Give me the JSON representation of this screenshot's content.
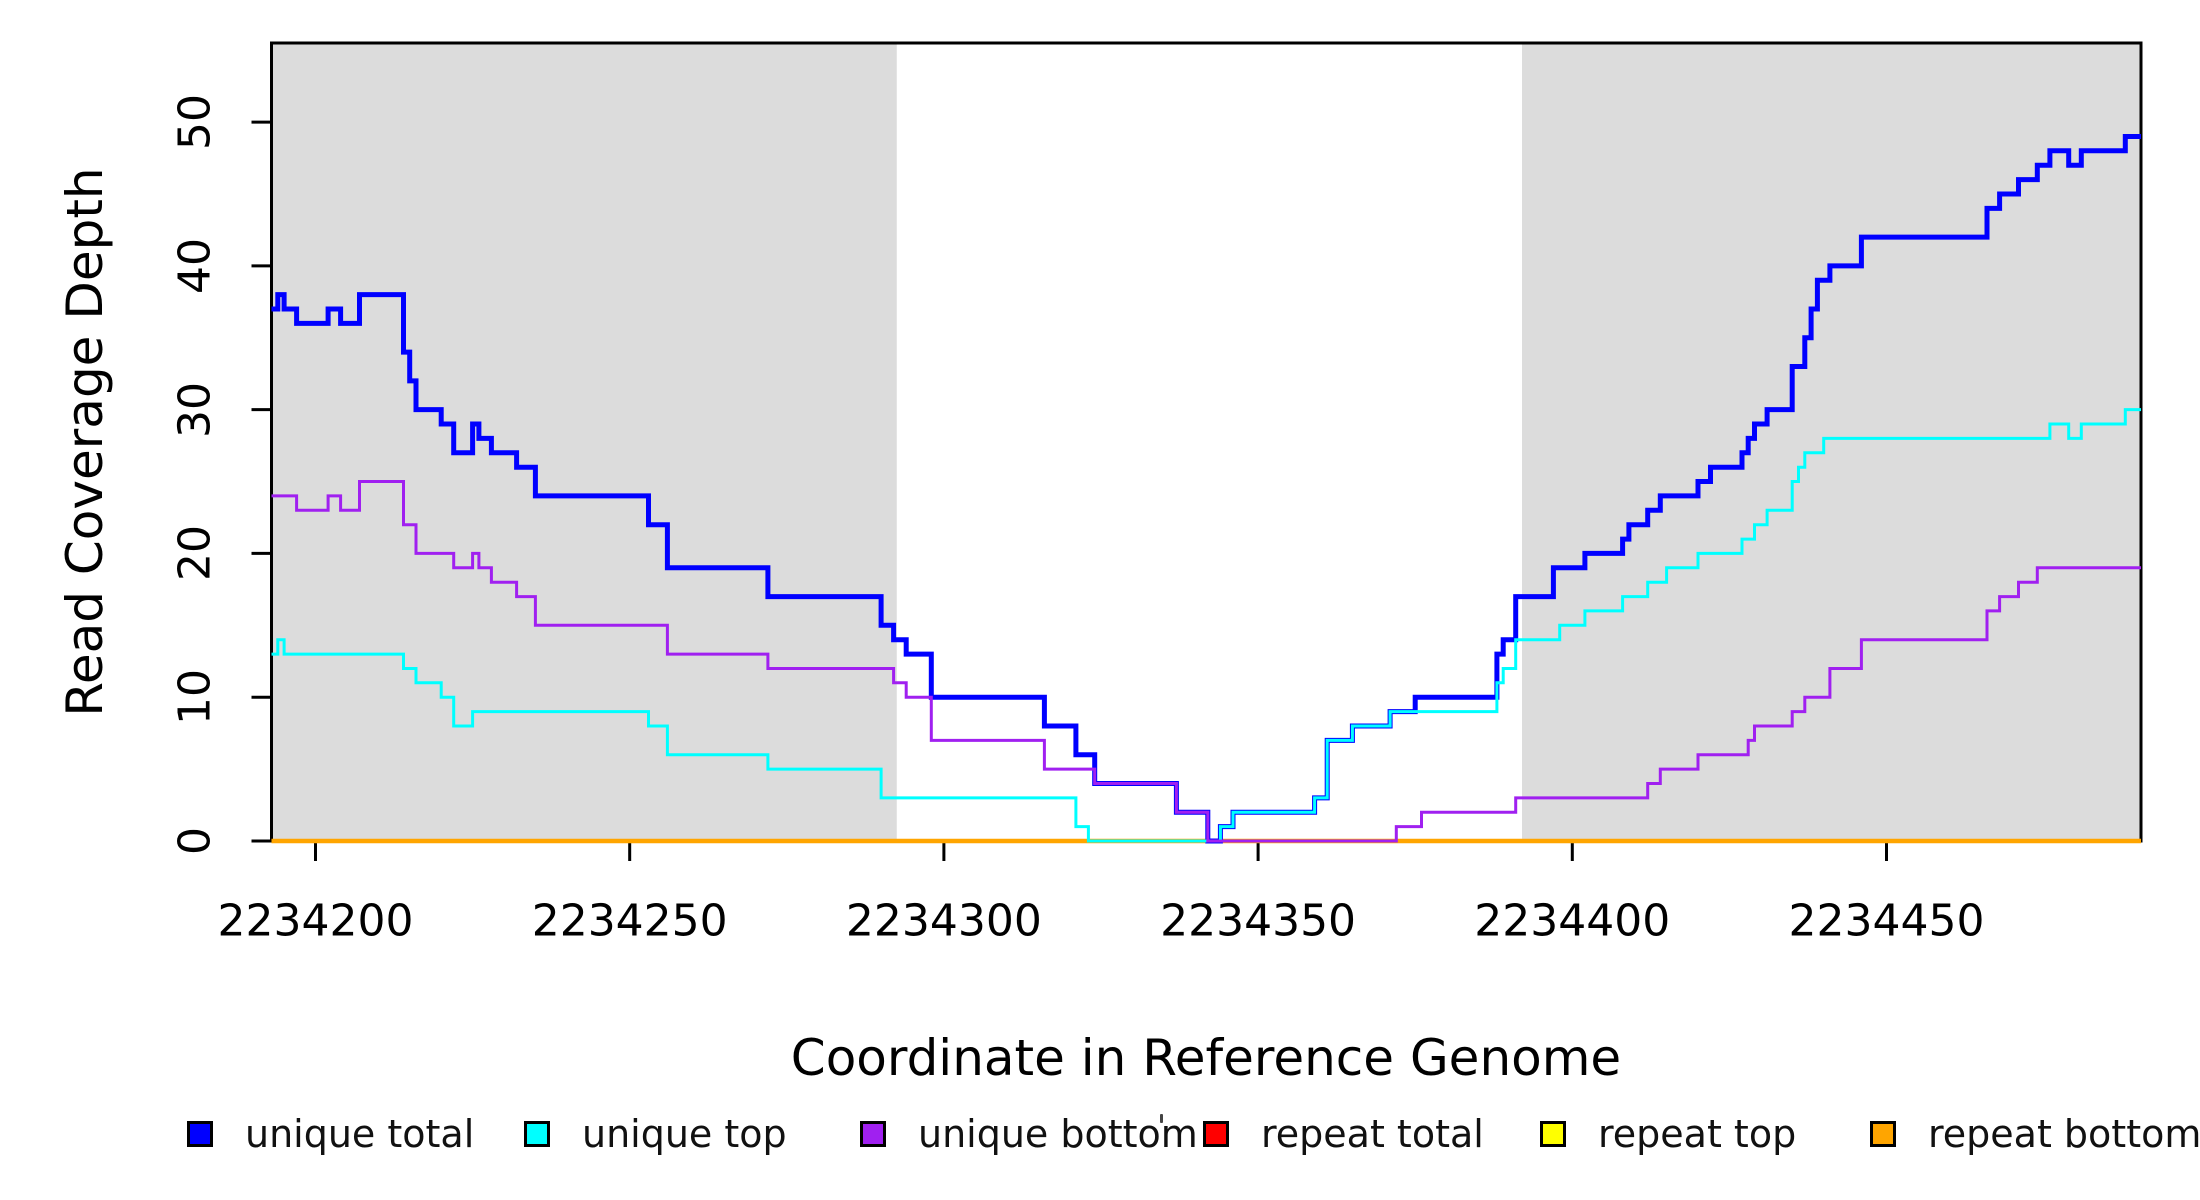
{
  "chart_data": {
    "type": "line",
    "subtype": "step-coverage",
    "title": "",
    "xlabel": "Coordinate in Reference Genome",
    "ylabel": "Read Coverage Depth",
    "xlim": [
      2234193,
      2234490.5
    ],
    "ylim": [
      0,
      55.5
    ],
    "x_ticks": [
      2234200,
      2234250,
      2234300,
      2234350,
      2234400,
      2234450
    ],
    "y_ticks": [
      0,
      10,
      20,
      30,
      40,
      50
    ],
    "grid": false,
    "legend_position": "bottom",
    "shade_color": "#DCDCDC",
    "shaded_regions": [
      {
        "from": 2234193,
        "to": 2234292.5
      },
      {
        "from": 2234392,
        "to": 2234490.5
      }
    ],
    "series": [
      {
        "name": "unique total",
        "color": "#0000FF",
        "line_width": 5,
        "points": [
          [
            2234193,
            37
          ],
          [
            2234194,
            38
          ],
          [
            2234195,
            37
          ],
          [
            2234197,
            36
          ],
          [
            2234202,
            37
          ],
          [
            2234204,
            36
          ],
          [
            2234207,
            38
          ],
          [
            2234214,
            34
          ],
          [
            2234215,
            32
          ],
          [
            2234216,
            30
          ],
          [
            2234220,
            29
          ],
          [
            2234222,
            27
          ],
          [
            2234225,
            29
          ],
          [
            2234226,
            28
          ],
          [
            2234228,
            27
          ],
          [
            2234232,
            26
          ],
          [
            2234235,
            24
          ],
          [
            2234253,
            22
          ],
          [
            2234256,
            19
          ],
          [
            2234272,
            17
          ],
          [
            2234290,
            15
          ],
          [
            2234292,
            14
          ],
          [
            2234294,
            13
          ],
          [
            2234298,
            10
          ],
          [
            2234316,
            8
          ],
          [
            2234321,
            6
          ],
          [
            2234324,
            4
          ],
          [
            2234337,
            2
          ],
          [
            2234342,
            0
          ],
          [
            2234344,
            1
          ],
          [
            2234346,
            2
          ],
          [
            2234359,
            3
          ],
          [
            2234361,
            7
          ],
          [
            2234365,
            8
          ],
          [
            2234371,
            9
          ],
          [
            2234375,
            10
          ],
          [
            2234388,
            13
          ],
          [
            2234389,
            14
          ],
          [
            2234391,
            17
          ],
          [
            2234397,
            19
          ],
          [
            2234402,
            20
          ],
          [
            2234408,
            21
          ],
          [
            2234409,
            22
          ],
          [
            2234412,
            23
          ],
          [
            2234414,
            24
          ],
          [
            2234420,
            25
          ],
          [
            2234422,
            26
          ],
          [
            2234427,
            27
          ],
          [
            2234428,
            28
          ],
          [
            2234429,
            29
          ],
          [
            2234431,
            30
          ],
          [
            2234435,
            33
          ],
          [
            2234437,
            35
          ],
          [
            2234438,
            37
          ],
          [
            2234439,
            39
          ],
          [
            2234441,
            40
          ],
          [
            2234446,
            42
          ],
          [
            2234466,
            44
          ],
          [
            2234468,
            45
          ],
          [
            2234471,
            46
          ],
          [
            2234474,
            47
          ],
          [
            2234476,
            48
          ],
          [
            2234479,
            47
          ],
          [
            2234481,
            48
          ],
          [
            2234488,
            49
          ]
        ]
      },
      {
        "name": "unique top",
        "color": "#00FFFF",
        "line_width": 3,
        "points": [
          [
            2234193,
            13
          ],
          [
            2234194,
            14
          ],
          [
            2234195,
            13
          ],
          [
            2234214,
            12
          ],
          [
            2234216,
            11
          ],
          [
            2234220,
            10
          ],
          [
            2234222,
            8
          ],
          [
            2234225,
            9
          ],
          [
            2234253,
            8
          ],
          [
            2234256,
            6
          ],
          [
            2234272,
            5
          ],
          [
            2234290,
            3
          ],
          [
            2234321,
            1
          ],
          [
            2234323,
            0
          ],
          [
            2234344,
            1
          ],
          [
            2234346,
            2
          ],
          [
            2234359,
            3
          ],
          [
            2234361,
            7
          ],
          [
            2234365,
            8
          ],
          [
            2234371,
            9
          ],
          [
            2234388,
            11
          ],
          [
            2234389,
            12
          ],
          [
            2234391,
            14
          ],
          [
            2234398,
            15
          ],
          [
            2234402,
            16
          ],
          [
            2234408,
            17
          ],
          [
            2234412,
            18
          ],
          [
            2234415,
            19
          ],
          [
            2234420,
            20
          ],
          [
            2234427,
            21
          ],
          [
            2234429,
            22
          ],
          [
            2234431,
            23
          ],
          [
            2234435,
            25
          ],
          [
            2234436,
            26
          ],
          [
            2234437,
            27
          ],
          [
            2234440,
            28
          ],
          [
            2234476,
            29
          ],
          [
            2234479,
            28
          ],
          [
            2234481,
            29
          ],
          [
            2234488,
            30
          ]
        ]
      },
      {
        "name": "unique bottom",
        "color": "#A020F0",
        "line_width": 3,
        "points": [
          [
            2234193,
            24
          ],
          [
            2234197,
            23
          ],
          [
            2234202,
            24
          ],
          [
            2234204,
            23
          ],
          [
            2234207,
            25
          ],
          [
            2234214,
            22
          ],
          [
            2234216,
            20
          ],
          [
            2234222,
            19
          ],
          [
            2234225,
            20
          ],
          [
            2234226,
            19
          ],
          [
            2234228,
            18
          ],
          [
            2234232,
            17
          ],
          [
            2234235,
            15
          ],
          [
            2234256,
            13
          ],
          [
            2234272,
            12
          ],
          [
            2234292,
            11
          ],
          [
            2234294,
            10
          ],
          [
            2234298,
            7
          ],
          [
            2234316,
            5
          ],
          [
            2234324,
            4
          ],
          [
            2234337,
            2
          ],
          [
            2234342,
            0
          ],
          [
            2234372,
            1
          ],
          [
            2234376,
            2
          ],
          [
            2234391,
            3
          ],
          [
            2234412,
            4
          ],
          [
            2234414,
            5
          ],
          [
            2234420,
            6
          ],
          [
            2234428,
            7
          ],
          [
            2234429,
            8
          ],
          [
            2234435,
            9
          ],
          [
            2234437,
            10
          ],
          [
            2234441,
            12
          ],
          [
            2234446,
            14
          ],
          [
            2234466,
            16
          ],
          [
            2234468,
            17
          ],
          [
            2234471,
            18
          ],
          [
            2234474,
            19
          ]
        ]
      },
      {
        "name": "repeat total",
        "color": "#FF0000",
        "line_width": 3.5,
        "points": [
          [
            2234193,
            0
          ]
        ]
      },
      {
        "name": "repeat top",
        "color": "#FFFF00",
        "line_width": 3.5,
        "points": [
          [
            2234193,
            0
          ]
        ]
      },
      {
        "name": "repeat bottom",
        "color": "#FFA500",
        "line_width": 4.5,
        "points": [
          [
            2234193,
            0
          ]
        ]
      }
    ],
    "draw_order": [
      "repeat total",
      "repeat top",
      "repeat bottom",
      "unique total",
      "unique top",
      "unique bottom"
    ]
  },
  "legend": {
    "items": [
      {
        "label": "unique total",
        "color": "#0000FF"
      },
      {
        "label": "unique top",
        "color": "#00FFFF"
      },
      {
        "label": "unique bottom",
        "color": "#A020F0"
      },
      {
        "label": "repeat total",
        "color": "#FF0000"
      },
      {
        "label": "repeat top",
        "color": "#FFFF00"
      },
      {
        "label": "repeat bottom",
        "color": "#FFA500"
      }
    ]
  }
}
